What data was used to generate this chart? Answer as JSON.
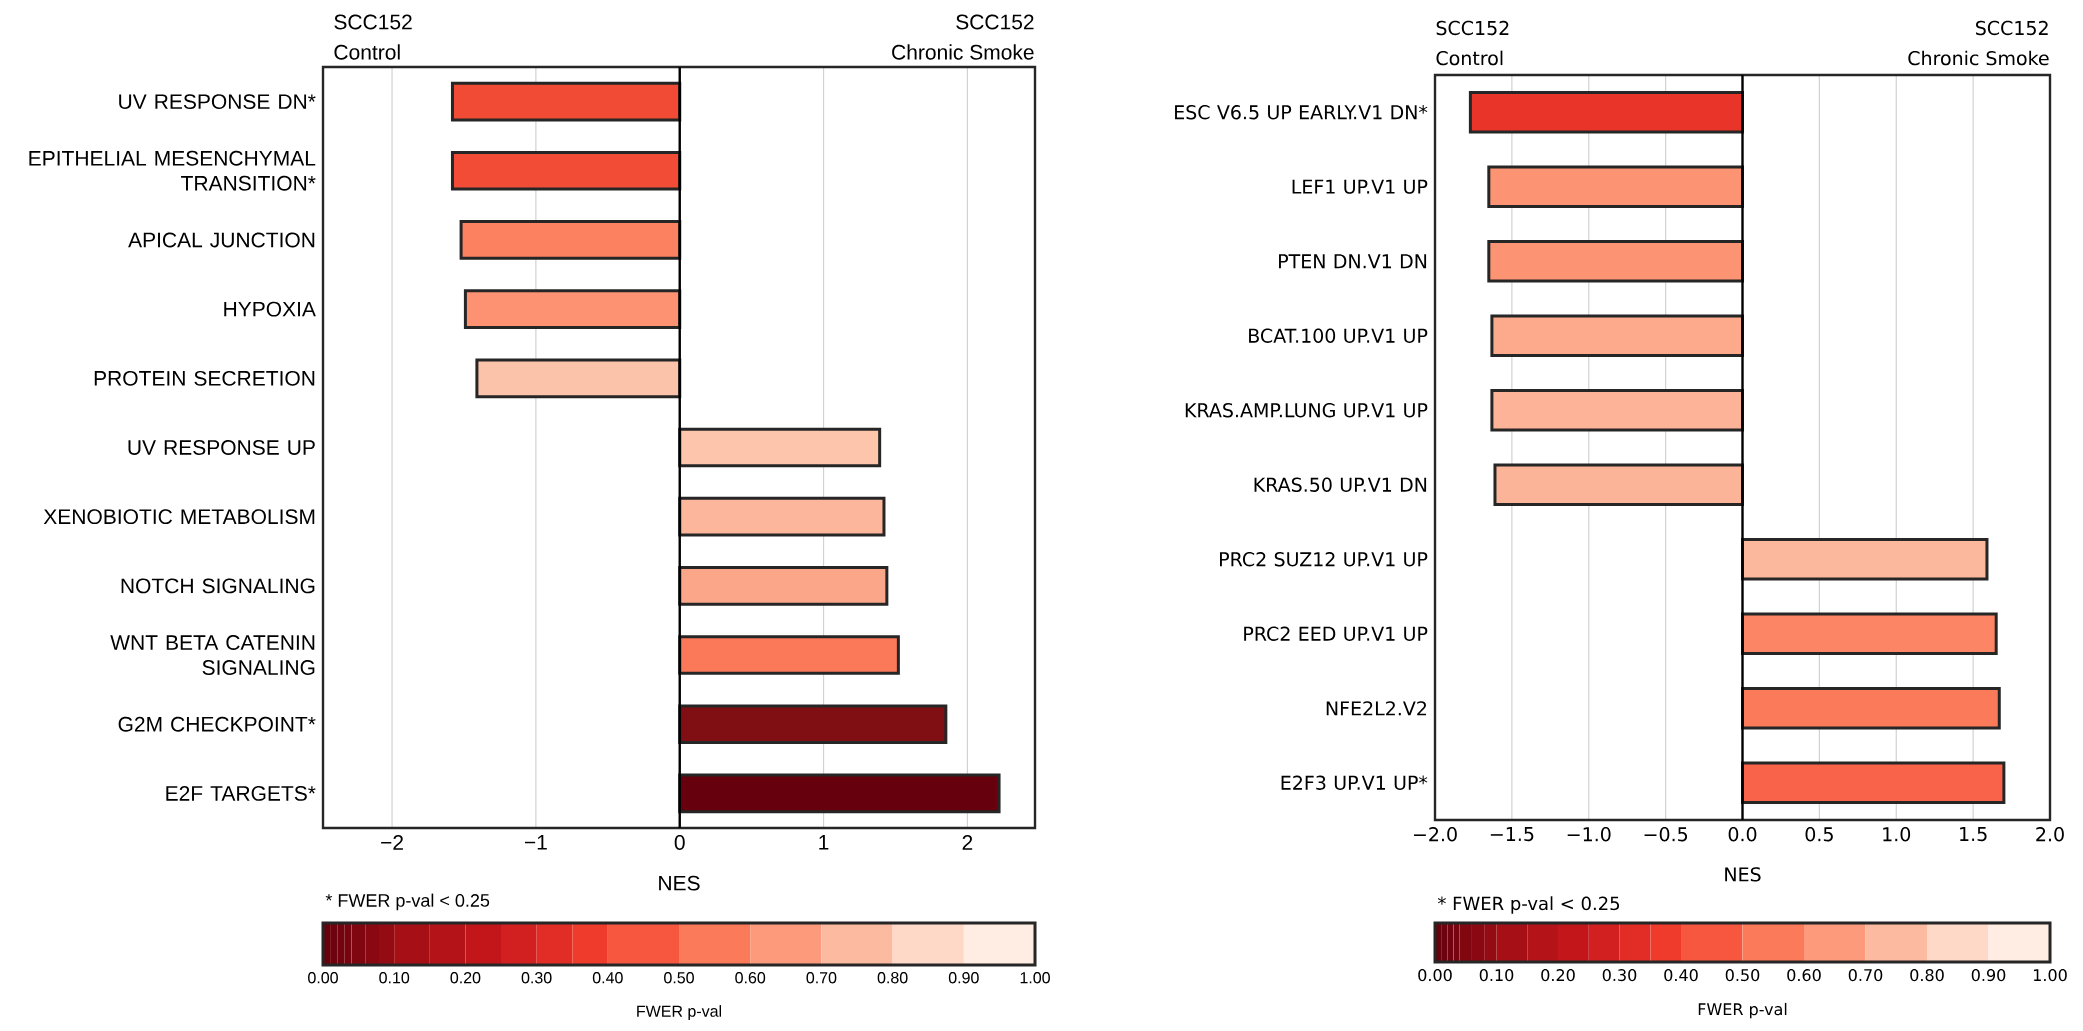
{
  "chart_data": [
    {
      "type": "bar",
      "orientation": "horizontal",
      "xlabel": "NES",
      "grid": "x",
      "categories": [
        "UV RESPONSE DN*",
        "EPITHELIAL MESENCHYMAL TRANSITION*",
        "APICAL JUNCTION",
        "HYPOXIA",
        "PROTEIN SECRETION",
        "UV RESPONSE UP",
        "XENOBIOTIC METABOLISM",
        "NOTCH SIGNALING",
        "WNT BETA CATENIN SIGNALING",
        "G2M CHECKPOINT*",
        "E2F TARGETS*"
      ],
      "values": [
        -1.58,
        -1.58,
        -1.52,
        -1.49,
        -1.41,
        1.39,
        1.42,
        1.44,
        1.52,
        1.85,
        2.22
      ],
      "colors": [
        "#f14a35",
        "#f24c37",
        "#fc8161",
        "#fc9272",
        "#fcc3ab",
        "#fcc5ac",
        "#fcb69b",
        "#fca689",
        "#fb7858",
        "#7f0f13",
        "#67000d"
      ],
      "xlim": [
        -2.48,
        2.47
      ],
      "xticks": [
        {
          "value": -2,
          "label": "−2"
        },
        {
          "value": -1,
          "label": "−1"
        },
        0,
        1,
        2
      ],
      "ref_lines": [
        {
          "axis": "x",
          "value": 0,
          "color": "#000000"
        }
      ],
      "annotations": [
        "SCC152",
        "Control",
        "SCC152",
        "Chronic Smoke",
        "* FWER p-val < 0.25"
      ],
      "clabel": "FWER p-val",
      "clim": [
        0,
        1
      ],
      "cticks": [
        {
          "value": 0,
          "label": "0.00"
        },
        {
          "value": 0.1,
          "label": "0.10"
        },
        {
          "value": 0.2,
          "label": "0.20"
        },
        {
          "value": 0.3,
          "label": "0.30"
        },
        {
          "value": 0.4,
          "label": "0.40"
        },
        {
          "value": 0.5,
          "label": "0.50"
        },
        {
          "value": 0.6,
          "label": "0.60"
        },
        {
          "value": 0.7,
          "label": "0.70"
        },
        {
          "value": 0.8,
          "label": "0.80"
        },
        {
          "value": 0.9,
          "label": "0.90"
        },
        {
          "value": 1,
          "label": "1.00"
        }
      ]
    },
    {
      "type": "bar",
      "orientation": "horizontal",
      "xlabel": "NES",
      "grid": "x",
      "categories": [
        "ESC V6.5 UP EARLY.V1 DN*",
        "LEF1 UP.V1 UP",
        "PTEN DN.V1 DN",
        "BCAT.100 UP.V1 UP",
        "KRAS.AMP.LUNG UP.V1 UP",
        "KRAS.50 UP.V1 DN",
        "PRC2 SUZ12 UP.V1 UP",
        "PRC2 EED UP.V1 UP",
        "NFE2L2.V2",
        "E2F3 UP.V1 UP*"
      ],
      "values": [
        -1.77,
        -1.65,
        -1.65,
        -1.63,
        -1.63,
        -1.61,
        1.59,
        1.65,
        1.67,
        1.7
      ],
      "colors": [
        "#e83429",
        "#fc9474",
        "#fc9474",
        "#fca98c",
        "#fcb398",
        "#fcb499",
        "#fcb89d",
        "#fc8565",
        "#fb7a5a",
        "#f9634a"
      ],
      "xlim": [
        -2,
        2
      ],
      "xticks": [
        {
          "value": -2,
          "label": "−2.0"
        },
        {
          "value": -1.5,
          "label": "−1.5"
        },
        {
          "value": -1,
          "label": "−1.0"
        },
        {
          "value": -0.5,
          "label": "−0.5"
        },
        {
          "value": 0,
          "label": "0.0"
        },
        {
          "value": 0.5,
          "label": "0.5"
        },
        {
          "value": 1,
          "label": "1.0"
        },
        {
          "value": 1.5,
          "label": "1.5"
        },
        {
          "value": 2,
          "label": "2.0"
        }
      ],
      "ref_lines": [
        {
          "axis": "x",
          "value": 0,
          "color": "#000000"
        }
      ],
      "annotations": [
        "SCC152",
        "Control",
        "SCC152",
        "Chronic Smoke",
        "* FWER p-val < 0.25"
      ],
      "clabel": "FWER p-val",
      "clim": [
        0,
        1
      ],
      "cticks": [
        {
          "value": 0,
          "label": "0.00"
        },
        {
          "value": 0.1,
          "label": "0.10"
        },
        {
          "value": 0.2,
          "label": "0.20"
        },
        {
          "value": 0.3,
          "label": "0.30"
        },
        {
          "value": 0.4,
          "label": "0.40"
        },
        {
          "value": 0.5,
          "label": "0.50"
        },
        {
          "value": 0.6,
          "label": "0.60"
        },
        {
          "value": 0.7,
          "label": "0.70"
        },
        {
          "value": 0.8,
          "label": "0.80"
        },
        {
          "value": 0.9,
          "label": "0.90"
        },
        {
          "value": 1,
          "label": "1.00"
        }
      ]
    }
  ]
}
